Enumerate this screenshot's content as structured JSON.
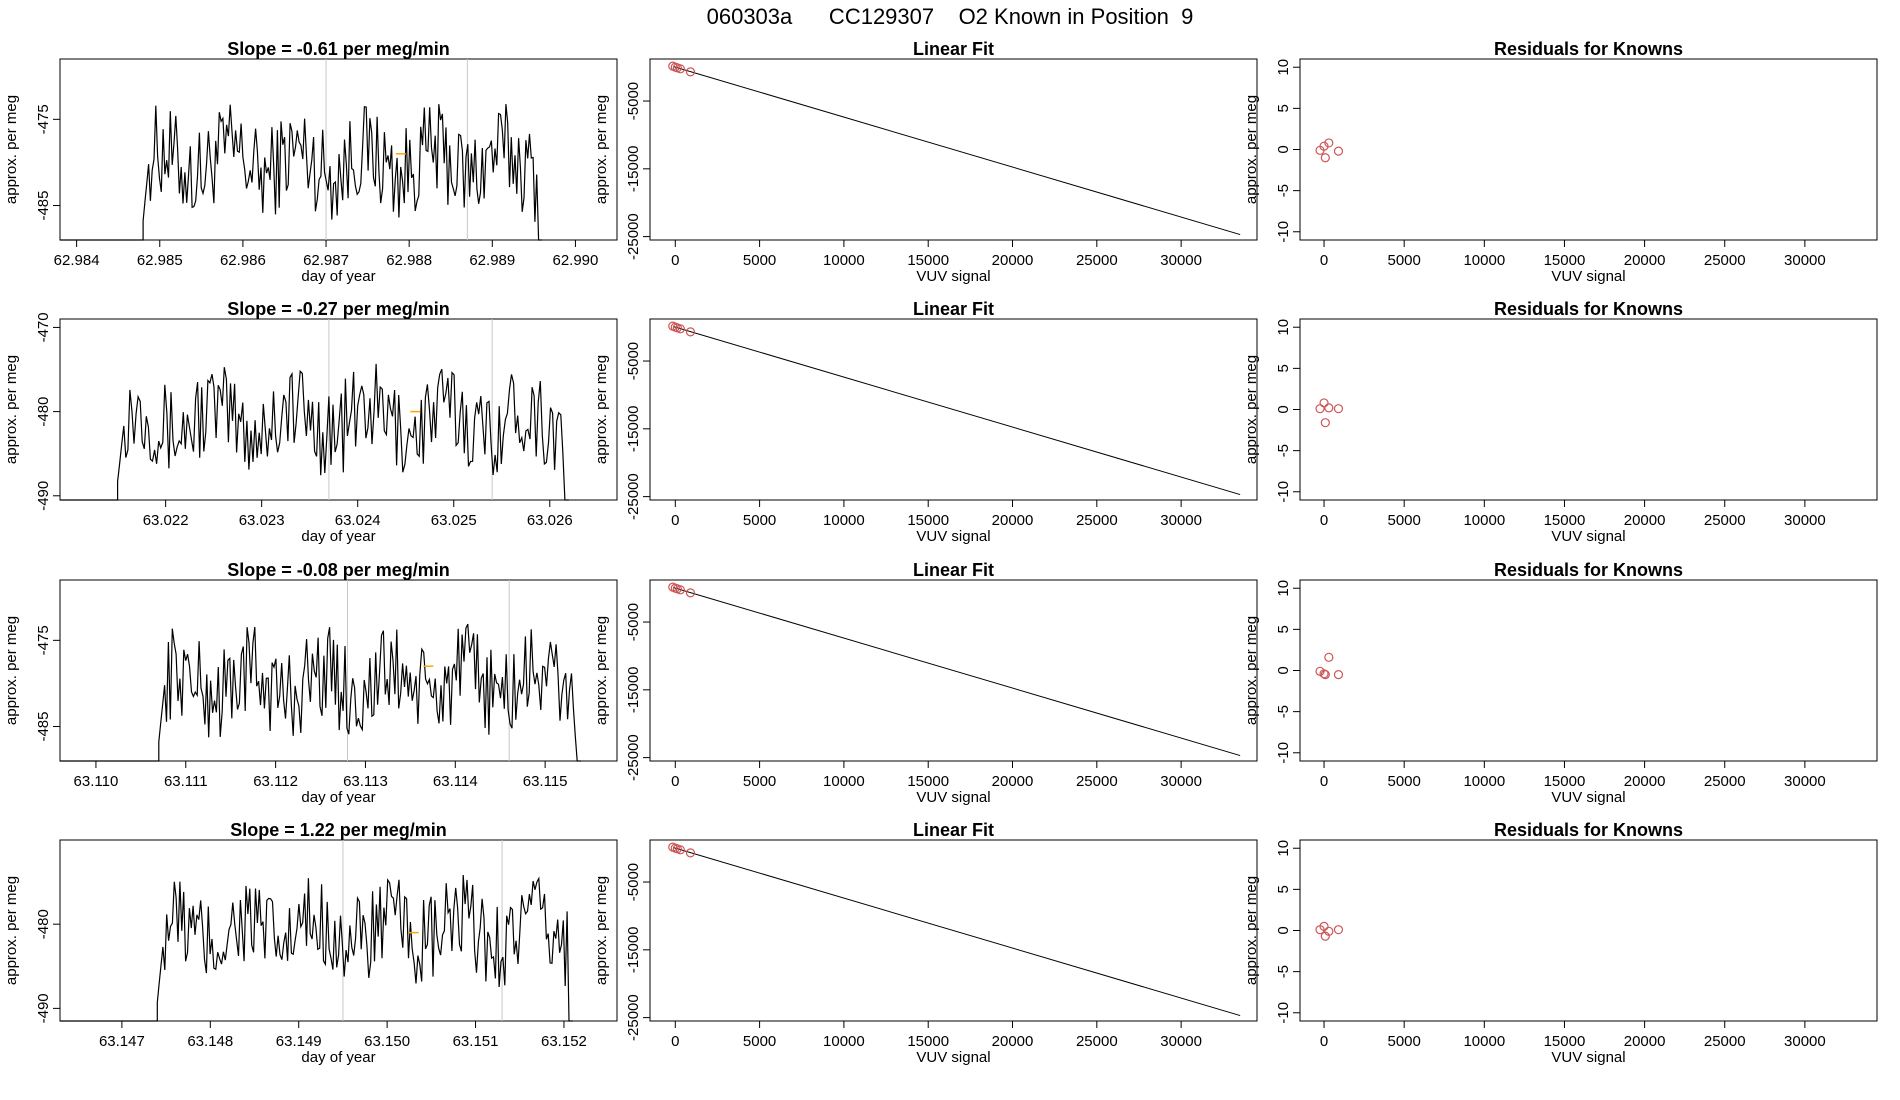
{
  "title": "060303a      CC129307    O2 Known in Position  9",
  "chart_data": [
    {
      "type": "line",
      "title": "Slope =  -0.61  per meg/min",
      "xlabel": "day of year",
      "ylabel": "approx. per meg",
      "xlim": [
        62.9838,
        62.9905
      ],
      "ylim": [
        -489,
        -468
      ],
      "xticks": [
        62.984,
        62.985,
        62.986,
        62.987,
        62.988,
        62.989,
        62.99
      ],
      "xtick_labels": [
        "62.984",
        "62.985",
        "62.986",
        "62.987",
        "62.988",
        "62.989",
        "62.990"
      ],
      "yticks": [
        -485,
        -475
      ],
      "ytick_labels": [
        "-485",
        "-475"
      ],
      "x_start": 62.9848,
      "x_end": 62.9896,
      "vlines": [
        62.987,
        62.9887
      ],
      "mean_marker": [
        62.9879,
        -479
      ]
    },
    {
      "type": "line",
      "title": "Slope =  -0.27  per meg/min",
      "xlabel": "day of year",
      "ylabel": "approx. per meg",
      "xlim": [
        63.0209,
        63.0267
      ],
      "ylim": [
        -490.5,
        -469
      ],
      "xticks": [
        63.022,
        63.023,
        63.024,
        63.025,
        63.026
      ],
      "xtick_labels": [
        "63.022",
        "63.023",
        "63.024",
        "63.025",
        "63.026"
      ],
      "yticks": [
        -490,
        -480,
        -470
      ],
      "ytick_labels": [
        "-490",
        "-480",
        "-470"
      ],
      "x_start": 63.0215,
      "x_end": 63.0262,
      "vlines": [
        63.0237,
        63.0254
      ],
      "mean_marker": [
        63.0246,
        -480
      ]
    },
    {
      "type": "line",
      "title": "Slope =  -0.08  per meg/min",
      "xlabel": "day of year",
      "ylabel": "approx. per meg",
      "xlim": [
        63.1096,
        63.1158
      ],
      "ylim": [
        -489,
        -468
      ],
      "xticks": [
        63.11,
        63.111,
        63.112,
        63.113,
        63.114,
        63.115
      ],
      "xtick_labels": [
        "63.110",
        "63.111",
        "63.112",
        "63.113",
        "63.114",
        "63.115"
      ],
      "yticks": [
        -485,
        -475
      ],
      "ytick_labels": [
        "-485",
        "-475"
      ],
      "x_start": 63.1107,
      "x_end": 63.1154,
      "vlines": [
        63.1128,
        63.1146
      ],
      "mean_marker": [
        63.1137,
        -478
      ]
    },
    {
      "type": "line",
      "title": "Slope =  1.22  per meg/min",
      "xlabel": "day of year",
      "ylabel": "approx. per meg",
      "xlim": [
        63.1463,
        63.1526
      ],
      "ylim": [
        -491.5,
        -470
      ],
      "xticks": [
        63.147,
        63.148,
        63.149,
        63.15,
        63.151,
        63.152
      ],
      "xtick_labels": [
        "63.147",
        "63.148",
        "63.149",
        "63.150",
        "63.151",
        "63.152"
      ],
      "yticks": [
        -490,
        -480
      ],
      "ytick_labels": [
        "-490",
        "-480"
      ],
      "x_start": 63.1474,
      "x_end": 63.1521,
      "vlines": [
        63.1495,
        63.1513
      ],
      "mean_marker": [
        63.1503,
        -481
      ]
    },
    {
      "type": "scatter",
      "title": "Linear Fit",
      "xlabel": "VUV signal",
      "ylabel": "approx. per meg",
      "xlim": [
        -1500,
        34500
      ],
      "ylim": [
        -25500,
        1200
      ],
      "xticks": [
        0,
        5000,
        10000,
        15000,
        20000,
        25000,
        30000
      ],
      "xtick_labels": [
        "0",
        "5000",
        "10000",
        "15000",
        "20000",
        "25000",
        "30000"
      ],
      "yticks": [
        -25000,
        -15000,
        -5000
      ],
      "ytick_labels": [
        "-25000",
        "-15000",
        "-5000"
      ],
      "points_x": [
        -150,
        0,
        120,
        300,
        900
      ],
      "points_y": [
        150,
        0,
        -100,
        -250,
        -700
      ],
      "fit_line": [
        [
          -100,
          80
        ],
        [
          33500,
          -24700
        ]
      ]
    },
    {
      "type": "scatter",
      "title": "Linear Fit",
      "xlabel": "VUV signal",
      "ylabel": "approx. per meg",
      "xlim": [
        -1500,
        34500
      ],
      "ylim": [
        -25500,
        1200
      ],
      "xticks": [
        0,
        5000,
        10000,
        15000,
        20000,
        25000,
        30000
      ],
      "xtick_labels": [
        "0",
        "5000",
        "10000",
        "15000",
        "20000",
        "25000",
        "30000"
      ],
      "yticks": [
        -25000,
        -15000,
        -5000
      ],
      "ytick_labels": [
        "-25000",
        "-15000",
        "-5000"
      ],
      "points_x": [
        -150,
        0,
        120,
        300,
        900
      ],
      "points_y": [
        150,
        0,
        -100,
        -250,
        -700
      ],
      "fit_line": [
        [
          -100,
          80
        ],
        [
          33500,
          -24700
        ]
      ]
    },
    {
      "type": "scatter",
      "title": "Linear Fit",
      "xlabel": "VUV signal",
      "ylabel": "approx. per meg",
      "xlim": [
        -1500,
        34500
      ],
      "ylim": [
        -25500,
        1200
      ],
      "xticks": [
        0,
        5000,
        10000,
        15000,
        20000,
        25000,
        30000
      ],
      "xtick_labels": [
        "0",
        "5000",
        "10000",
        "15000",
        "20000",
        "25000",
        "30000"
      ],
      "yticks": [
        -25000,
        -15000,
        -5000
      ],
      "ytick_labels": [
        "-25000",
        "-15000",
        "-5000"
      ],
      "points_x": [
        -150,
        0,
        120,
        300,
        900
      ],
      "points_y": [
        150,
        0,
        -100,
        -250,
        -700
      ],
      "fit_line": [
        [
          -100,
          80
        ],
        [
          33500,
          -24700
        ]
      ]
    },
    {
      "type": "scatter",
      "title": "Linear Fit",
      "xlabel": "VUV signal",
      "ylabel": "approx. per meg",
      "xlim": [
        -1500,
        34500
      ],
      "ylim": [
        -25500,
        1200
      ],
      "xticks": [
        0,
        5000,
        10000,
        15000,
        20000,
        25000,
        30000
      ],
      "xtick_labels": [
        "0",
        "5000",
        "10000",
        "15000",
        "20000",
        "25000",
        "30000"
      ],
      "yticks": [
        -25000,
        -15000,
        -5000
      ],
      "ytick_labels": [
        "-25000",
        "-15000",
        "-5000"
      ],
      "points_x": [
        -150,
        0,
        120,
        300,
        900
      ],
      "points_y": [
        150,
        0,
        -100,
        -250,
        -700
      ],
      "fit_line": [
        [
          -100,
          80
        ],
        [
          33500,
          -24700
        ]
      ]
    },
    {
      "type": "scatter",
      "title": "Residuals for Knowns",
      "xlabel": "VUV signal",
      "ylabel": "approx. per meg",
      "xlim": [
        -1500,
        34500
      ],
      "ylim": [
        -11,
        11
      ],
      "xticks": [
        0,
        5000,
        10000,
        15000,
        20000,
        25000,
        30000
      ],
      "xtick_labels": [
        "0",
        "5000",
        "10000",
        "15000",
        "20000",
        "25000",
        "30000"
      ],
      "yticks": [
        -10,
        -5,
        0,
        5,
        10
      ],
      "ytick_labels": [
        "-10",
        "-5",
        "0",
        "5",
        "10"
      ],
      "points_x": [
        -250,
        0,
        80,
        300,
        900
      ],
      "points_y": [
        -0.1,
        0.4,
        -1.0,
        0.8,
        -0.2
      ]
    },
    {
      "type": "scatter",
      "title": "Residuals for Knowns",
      "xlabel": "VUV signal",
      "ylabel": "approx. per meg",
      "xlim": [
        -1500,
        34500
      ],
      "ylim": [
        -11,
        11
      ],
      "xticks": [
        0,
        5000,
        10000,
        15000,
        20000,
        25000,
        30000
      ],
      "xtick_labels": [
        "0",
        "5000",
        "10000",
        "15000",
        "20000",
        "25000",
        "30000"
      ],
      "yticks": [
        -10,
        -5,
        0,
        5,
        10
      ],
      "ytick_labels": [
        "-10",
        "-5",
        "0",
        "5",
        "10"
      ],
      "points_x": [
        -250,
        0,
        80,
        300,
        900
      ],
      "points_y": [
        0.1,
        0.8,
        -1.6,
        0.2,
        0.1
      ]
    },
    {
      "type": "scatter",
      "title": "Residuals for Knowns",
      "xlabel": "VUV signal",
      "ylabel": "approx. per meg",
      "xlim": [
        -1500,
        34500
      ],
      "ylim": [
        -11,
        11
      ],
      "xticks": [
        0,
        5000,
        10000,
        15000,
        20000,
        25000,
        30000
      ],
      "xtick_labels": [
        "0",
        "5000",
        "10000",
        "15000",
        "20000",
        "25000",
        "30000"
      ],
      "yticks": [
        -10,
        -5,
        0,
        5,
        10
      ],
      "ytick_labels": [
        "-10",
        "-5",
        "0",
        "5",
        "10"
      ],
      "points_x": [
        -250,
        0,
        80,
        300,
        900
      ],
      "points_y": [
        -0.1,
        -0.4,
        -0.5,
        1.6,
        -0.5
      ]
    },
    {
      "type": "scatter",
      "title": "Residuals for Knowns",
      "xlabel": "VUV signal",
      "ylabel": "approx. per meg",
      "xlim": [
        -1500,
        34500
      ],
      "ylim": [
        -11,
        11
      ],
      "xticks": [
        0,
        5000,
        10000,
        15000,
        20000,
        25000,
        30000
      ],
      "xtick_labels": [
        "0",
        "5000",
        "10000",
        "15000",
        "20000",
        "25000",
        "30000"
      ],
      "yticks": [
        -10,
        -5,
        0,
        5,
        10
      ],
      "ytick_labels": [
        "-10",
        "-5",
        "0",
        "5",
        "10"
      ],
      "points_x": [
        -250,
        0,
        80,
        300,
        900
      ],
      "points_y": [
        0.1,
        0.5,
        -0.7,
        -0.1,
        0.1
      ]
    }
  ]
}
